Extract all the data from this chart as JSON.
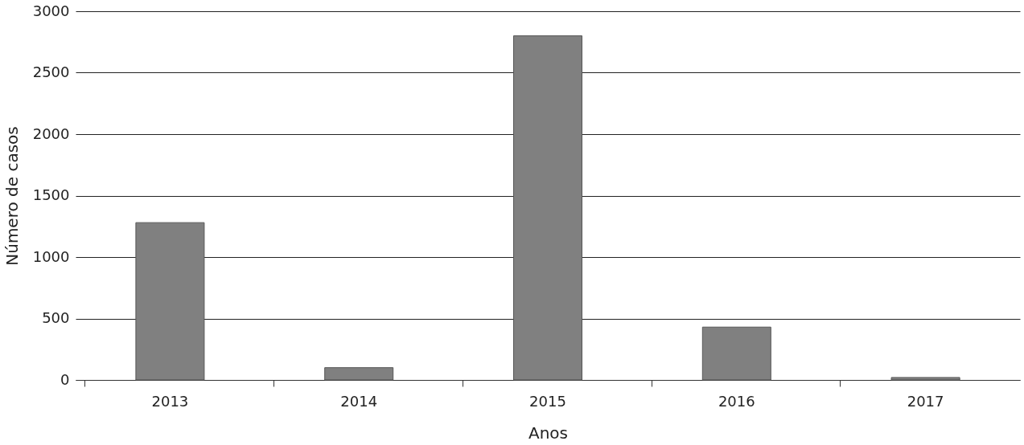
{
  "chart_data": {
    "type": "bar",
    "categories": [
      "2013",
      "2014",
      "2015",
      "2016",
      "2017"
    ],
    "values": [
      1280,
      100,
      2800,
      430,
      20
    ],
    "color": "#808080",
    "xlabel": "Anos",
    "ylabel": "Número de casos",
    "ylim": [
      0,
      3000
    ],
    "yticks": [
      0,
      500,
      1000,
      1500,
      2000,
      2500,
      3000
    ],
    "grid": "y"
  }
}
